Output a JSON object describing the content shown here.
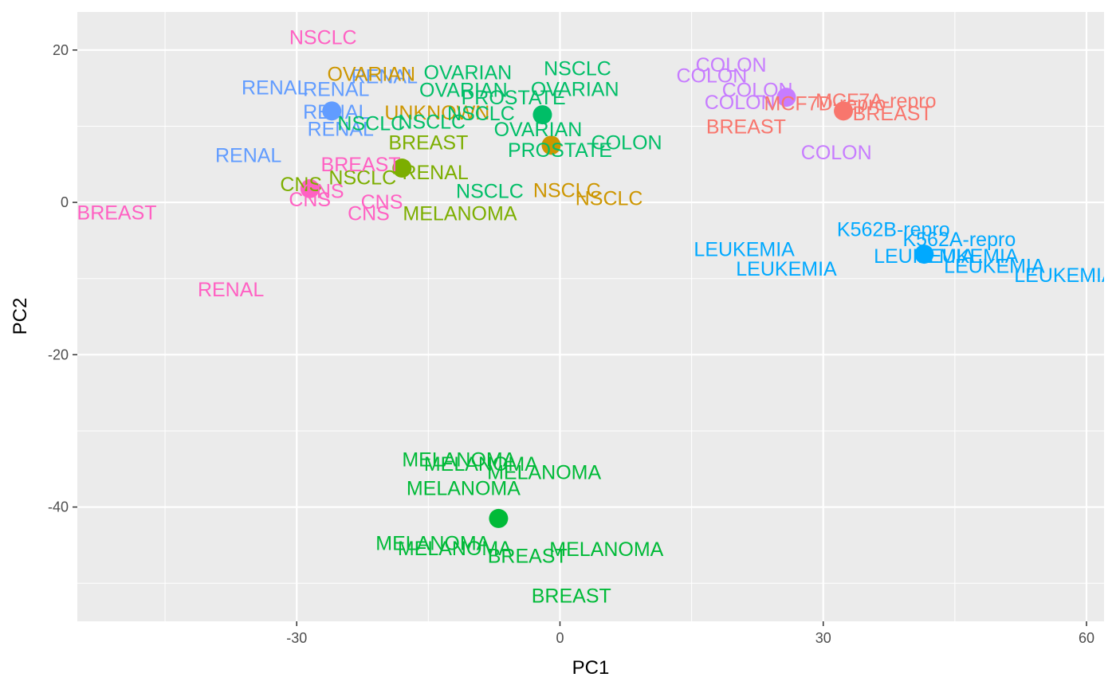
{
  "chart_data": {
    "type": "scatter",
    "title": "",
    "xlabel": "PC1",
    "ylabel": "PC2",
    "xlim": [
      -55,
      62
    ],
    "ylim": [
      -55,
      25
    ],
    "x_ticks": [
      -30,
      0,
      30,
      60
    ],
    "y_ticks": [
      -40,
      -20,
      0,
      20
    ],
    "grid": true,
    "legend": "none",
    "centroids": [
      {
        "x": -26,
        "y": 12,
        "color": "#619CFF"
      },
      {
        "x": -28.5,
        "y": 1.8,
        "color": "#FF61C3"
      },
      {
        "x": -18,
        "y": 4.5,
        "color": "#7CAE00"
      },
      {
        "x": -2,
        "y": 11.5,
        "color": "#00BE67"
      },
      {
        "x": -1,
        "y": 7.5,
        "color": "#CD9600"
      },
      {
        "x": 25.8,
        "y": 13.8,
        "color": "#C77CFF"
      },
      {
        "x": 32.3,
        "y": 12,
        "color": "#F8766D"
      },
      {
        "x": 41.5,
        "y": -6.8,
        "color": "#00A9FF"
      },
      {
        "x": -7,
        "y": -41.5,
        "color": "#00BA38"
      }
    ],
    "labels": [
      {
        "text": "NSCLC",
        "x": -27,
        "y": 21.6,
        "color": "#FF61C3"
      },
      {
        "text": "RENAL",
        "x": -32.5,
        "y": 15,
        "color": "#619CFF"
      },
      {
        "text": "RENAL",
        "x": -25.5,
        "y": 14.8,
        "color": "#619CFF"
      },
      {
        "text": "RENAL",
        "x": -20,
        "y": 16.5,
        "color": "#619CFF"
      },
      {
        "text": "RENAL",
        "x": -25.5,
        "y": 11.8,
        "color": "#619CFF"
      },
      {
        "text": "RENAL",
        "x": -25,
        "y": 9.6,
        "color": "#619CFF"
      },
      {
        "text": "RENAL",
        "x": -35.5,
        "y": 6.1,
        "color": "#619CFF"
      },
      {
        "text": "OVARIAN",
        "x": -21.5,
        "y": 16.8,
        "color": "#CD9600"
      },
      {
        "text": "UNKNOWN",
        "x": -14,
        "y": 11.7,
        "color": "#CD9600"
      },
      {
        "text": "NSCLC",
        "x": 0.8,
        "y": 1.5,
        "color": "#CD9600"
      },
      {
        "text": "NSCLC",
        "x": 5.6,
        "y": 0.5,
        "color": "#CD9600"
      },
      {
        "text": "OVARIAN",
        "x": -10.5,
        "y": 17,
        "color": "#00BE67"
      },
      {
        "text": "NSCLC",
        "x": 2,
        "y": 17.5,
        "color": "#00BE67"
      },
      {
        "text": "OVARIAN",
        "x": -11,
        "y": 14.7,
        "color": "#00BE67"
      },
      {
        "text": "OVARIAN",
        "x": 1.7,
        "y": 14.8,
        "color": "#00BE67"
      },
      {
        "text": "PROSTATE",
        "x": -5.3,
        "y": 13.7,
        "color": "#00BE67"
      },
      {
        "text": "NSCLC",
        "x": -9,
        "y": 11.6,
        "color": "#00BE67"
      },
      {
        "text": "NSCLC",
        "x": -14.6,
        "y": 10.5,
        "color": "#00BE67"
      },
      {
        "text": "NSCLC",
        "x": -21.5,
        "y": 10.3,
        "color": "#00BE67"
      },
      {
        "text": "OVARIAN",
        "x": -2.5,
        "y": 9.5,
        "color": "#00BE67"
      },
      {
        "text": "PROSTATE",
        "x": 0,
        "y": 6.8,
        "color": "#00BE67"
      },
      {
        "text": "COLON",
        "x": 7.6,
        "y": 7.8,
        "color": "#00BE67"
      },
      {
        "text": "NSCLC",
        "x": -8,
        "y": 1.4,
        "color": "#00BE67"
      },
      {
        "text": "BREAST",
        "x": -15,
        "y": 7.8,
        "color": "#7CAE00"
      },
      {
        "text": "RENAL",
        "x": -14.2,
        "y": 3.9,
        "color": "#7CAE00"
      },
      {
        "text": "NSCLC",
        "x": -22.5,
        "y": 3.2,
        "color": "#7CAE00"
      },
      {
        "text": "CNS",
        "x": -29.5,
        "y": 2.3,
        "color": "#7CAE00"
      },
      {
        "text": "MELANOMA",
        "x": -11.4,
        "y": -1.5,
        "color": "#7CAE00"
      },
      {
        "text": "BREAST",
        "x": -22.7,
        "y": 4.9,
        "color": "#FF61C3"
      },
      {
        "text": "CNS",
        "x": -27,
        "y": 1.4,
        "color": "#FF61C3"
      },
      {
        "text": "CNS",
        "x": -28.5,
        "y": 0.3,
        "color": "#FF61C3"
      },
      {
        "text": "CNS",
        "x": -20.3,
        "y": 0,
        "color": "#FF61C3"
      },
      {
        "text": "CNS",
        "x": -21.8,
        "y": -1.5,
        "color": "#FF61C3"
      },
      {
        "text": "BREAST",
        "x": -50.5,
        "y": -1.4,
        "color": "#FF61C3"
      },
      {
        "text": "RENAL",
        "x": -37.5,
        "y": -11.5,
        "color": "#FF61C3"
      },
      {
        "text": "COLON",
        "x": 19.5,
        "y": 18,
        "color": "#C77CFF"
      },
      {
        "text": "COLON",
        "x": 17.3,
        "y": 16.6,
        "color": "#C77CFF"
      },
      {
        "text": "COLON",
        "x": 22.5,
        "y": 14.7,
        "color": "#C77CFF"
      },
      {
        "text": "COLON",
        "x": 20.5,
        "y": 13.1,
        "color": "#C77CFF"
      },
      {
        "text": "COLON",
        "x": 31.5,
        "y": 6.5,
        "color": "#C77CFF"
      },
      {
        "text": "MCF7D-repro",
        "x": 30.2,
        "y": 12.9,
        "color": "#F8766D"
      },
      {
        "text": "MCF7A-repro",
        "x": 36,
        "y": 13.3,
        "color": "#F8766D"
      },
      {
        "text": "BREAST",
        "x": 37.9,
        "y": 11.6,
        "color": "#F8766D"
      },
      {
        "text": "BREAST",
        "x": 21.2,
        "y": 9.9,
        "color": "#F8766D"
      },
      {
        "text": "K562B-repro",
        "x": 38,
        "y": -3.6,
        "color": "#00A9FF"
      },
      {
        "text": "K562A-repro",
        "x": 45.5,
        "y": -4.9,
        "color": "#00A9FF"
      },
      {
        "text": "LEUKEMIA",
        "x": 21,
        "y": -6.2,
        "color": "#00A9FF"
      },
      {
        "text": "LEUKEMIA",
        "x": 25.8,
        "y": -8.8,
        "color": "#00A9FF"
      },
      {
        "text": "LEUKEMIA",
        "x": 41.5,
        "y": -7.1,
        "color": "#00A9FF"
      },
      {
        "text": "LEUKEMIA",
        "x": 46.5,
        "y": -7.1,
        "color": "#00A9FF"
      },
      {
        "text": "LEUKEMIA",
        "x": 49.5,
        "y": -8.4,
        "color": "#00A9FF"
      },
      {
        "text": "LEUKEMIA",
        "x": 57.5,
        "y": -9.6,
        "color": "#00A9FF"
      },
      {
        "text": "MELANOMA",
        "x": -11.5,
        "y": -33.8,
        "color": "#00BA38"
      },
      {
        "text": "MELANOMA",
        "x": -9,
        "y": -34.4,
        "color": "#00BA38"
      },
      {
        "text": "MELANOMA",
        "x": -1.8,
        "y": -35.5,
        "color": "#00BA38"
      },
      {
        "text": "MELANOMA",
        "x": -11,
        "y": -37.6,
        "color": "#00BA38"
      },
      {
        "text": "MELANOMA",
        "x": -14.5,
        "y": -44.8,
        "color": "#00BA38"
      },
      {
        "text": "MELANOMA",
        "x": -12,
        "y": -45.5,
        "color": "#00BA38"
      },
      {
        "text": "BREAST",
        "x": -3.7,
        "y": -46.5,
        "color": "#00BA38"
      },
      {
        "text": "MELANOMA",
        "x": 5.3,
        "y": -45.6,
        "color": "#00BA38"
      },
      {
        "text": "BREAST",
        "x": 1.3,
        "y": -51.7,
        "color": "#00BA38"
      }
    ]
  }
}
